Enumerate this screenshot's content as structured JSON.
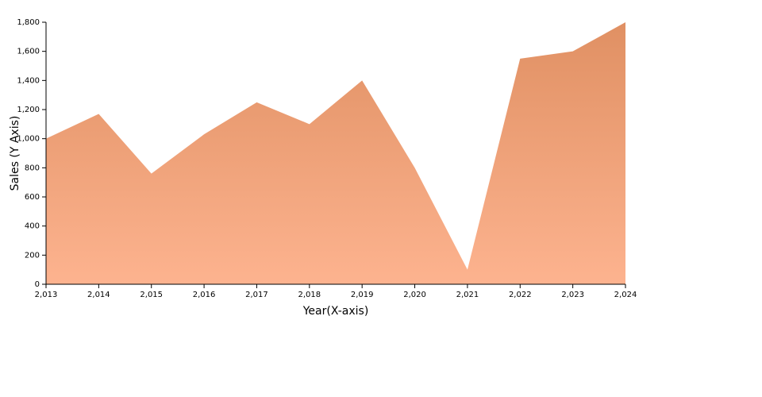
{
  "chart_data": {
    "type": "area",
    "x_label": "Year(X-axis)",
    "y_label": "Sales (Y Axis)",
    "x": [
      2013,
      2014,
      2015,
      2016,
      2017,
      2018,
      2019,
      2020,
      2021,
      2022,
      2023,
      2024
    ],
    "values": [
      1000,
      1170,
      760,
      1030,
      1250,
      1100,
      1400,
      800,
      100,
      1550,
      1600,
      1800
    ],
    "gradient_colors": [
      "#e09063",
      "#fdb38f"
    ],
    "xlim": [
      2013,
      2024
    ],
    "xticks": [
      {
        "value": 2013,
        "label": "2,013"
      },
      {
        "value": 2014,
        "label": "2,014"
      },
      {
        "value": 2015,
        "label": "2,015"
      },
      {
        "value": 2016,
        "label": "2,016"
      },
      {
        "value": 2017,
        "label": "2,017"
      },
      {
        "value": 2018,
        "label": "2,018"
      },
      {
        "value": 2019,
        "label": "2,019"
      },
      {
        "value": 2020,
        "label": "2,020"
      },
      {
        "value": 2021,
        "label": "2,021"
      },
      {
        "value": 2022,
        "label": "2,022"
      },
      {
        "value": 2023,
        "label": "2,023"
      },
      {
        "value": 2024,
        "label": "2,024"
      }
    ],
    "ylim": [
      0,
      1800
    ],
    "yticks": [
      0,
      200,
      400,
      600,
      800,
      {
        "value": 1000,
        "label": "1,000"
      },
      {
        "value": 1200,
        "label": "1,200"
      },
      {
        "value": 1400,
        "label": "1,400"
      },
      {
        "value": 1600,
        "label": "1,600"
      },
      {
        "value": 1800,
        "label": "1,800"
      }
    ],
    "grid": false
  }
}
